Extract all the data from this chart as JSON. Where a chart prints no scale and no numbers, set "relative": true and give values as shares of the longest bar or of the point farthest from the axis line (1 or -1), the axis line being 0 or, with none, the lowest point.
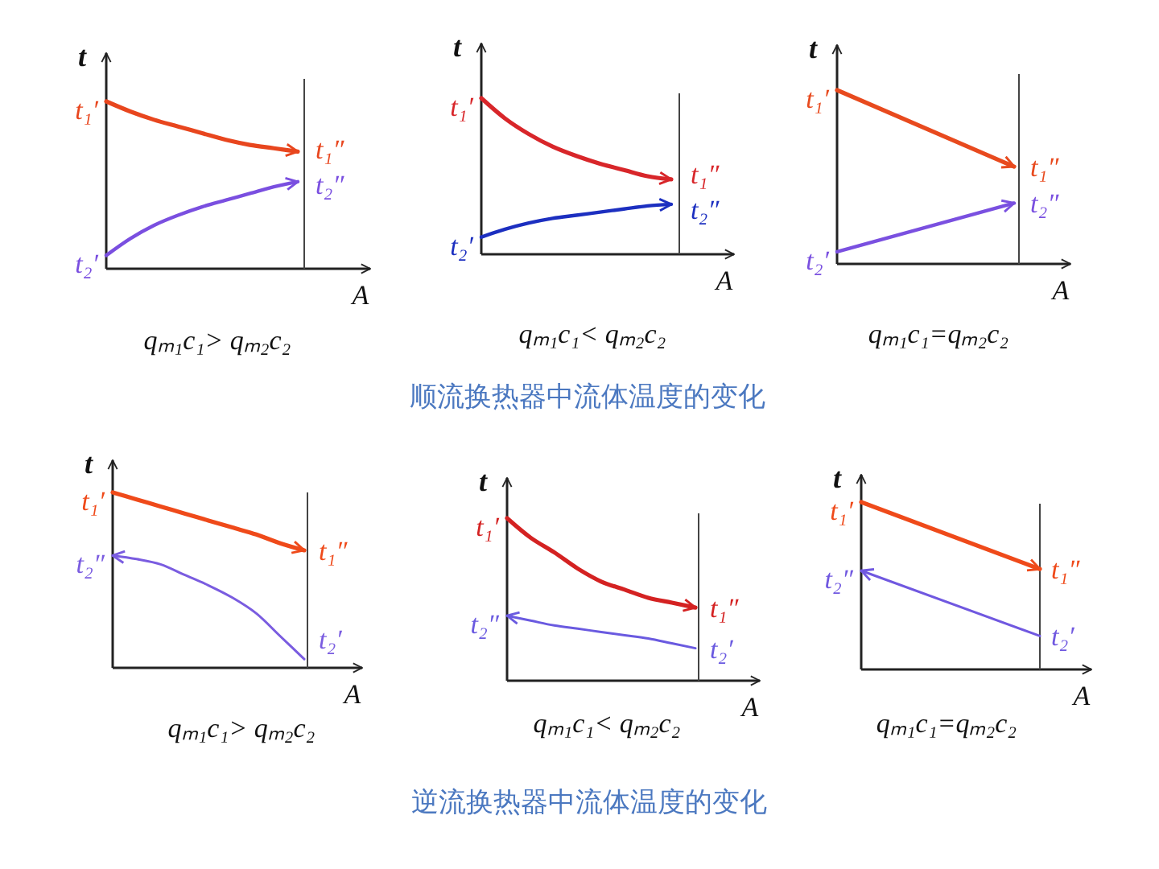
{
  "chart_data": [
    {
      "type": "line",
      "relative": true,
      "xlabel": "A",
      "ylabel": "t",
      "categories": [
        null,
        null,
        null,
        null,
        null,
        null,
        null,
        null,
        null
      ],
      "series": [
        {
          "color": "#e8461e",
          "values": [
            1,
            0.94,
            0.89,
            0.85,
            0.81,
            0.77,
            0.74,
            0.72,
            0.7
          ]
        },
        {
          "color": "#7a4fe0",
          "values": [
            0.08,
            0.18,
            0.26,
            0.32,
            0.37,
            0.41,
            0.45,
            0.49,
            0.52
          ]
        }
      ],
      "annotations": [
        "qₘ₁c₁> qₘ₂c₂",
        "t₁′",
        "t₁″",
        "t₂′",
        "t₂″"
      ]
    },
    {
      "type": "line",
      "relative": true,
      "xlabel": "A",
      "ylabel": "t",
      "categories": [
        null,
        null,
        null,
        null,
        null,
        null,
        null,
        null,
        null
      ],
      "series": [
        {
          "color": "#d8262a",
          "values": [
            1,
            0.87,
            0.77,
            0.69,
            0.63,
            0.58,
            0.54,
            0.5,
            0.48
          ]
        },
        {
          "color": "#1c2fc0",
          "values": [
            0.11,
            0.16,
            0.2,
            0.23,
            0.25,
            0.27,
            0.29,
            0.31,
            0.32
          ]
        }
      ],
      "annotations": [
        "qₘ₁c₁< qₘ₂c₂",
        "t₁′",
        "t₁″",
        "t₂′",
        "t₂″",
        "顺流换热器中流体温度的变化"
      ]
    },
    {
      "type": "line",
      "relative": true,
      "xlabel": "A",
      "ylabel": "t",
      "categories": [
        null,
        null
      ],
      "series": [
        {
          "color": "#e84a1e",
          "values": [
            1,
            0.56
          ]
        },
        {
          "color": "#7a50e0",
          "values": [
            0.07,
            0.35
          ]
        }
      ],
      "annotations": [
        "qₘ₁c₁=qₘ₂c₂",
        "t₁′",
        "t₁″",
        "t₂′",
        "t₂″"
      ]
    },
    {
      "type": "line",
      "relative": true,
      "xlabel": "A",
      "ylabel": "t",
      "categories": [
        null,
        null,
        null,
        null,
        null,
        null,
        null,
        null,
        null
      ],
      "series": [
        {
          "color": "#ef4a1a",
          "values": [
            1,
            0.96,
            0.92,
            0.88,
            0.84,
            0.8,
            0.76,
            0.71,
            0.67
          ]
        },
        {
          "color": "#7a5ce0",
          "values": [
            0.64,
            0.62,
            0.59,
            0.53,
            0.47,
            0.4,
            0.31,
            0.18,
            0.05
          ]
        }
      ],
      "annotations": [
        "qₘ₁c₁> qₘ₂c₂",
        "t₁′",
        "t₁″",
        "t₂″",
        "t₂′"
      ]
    },
    {
      "type": "line",
      "relative": true,
      "xlabel": "A",
      "ylabel": "t",
      "categories": [
        null,
        null,
        null,
        null,
        null,
        null,
        null,
        null,
        null
      ],
      "series": [
        {
          "color": "#d42222",
          "values": [
            1,
            0.88,
            0.79,
            0.69,
            0.61,
            0.56,
            0.51,
            0.48,
            0.45
          ]
        },
        {
          "color": "#6a5ae0",
          "values": [
            0.4,
            0.37,
            0.34,
            0.32,
            0.3,
            0.28,
            0.26,
            0.23,
            0.2
          ]
        }
      ],
      "annotations": [
        "qₘ₁c₁< qₘ₂c₂",
        "t₁′",
        "t₁″",
        "t₂″",
        "t₂′",
        "逆流换热器中流体温度的变化"
      ]
    },
    {
      "type": "line",
      "relative": true,
      "xlabel": "A",
      "ylabel": "t",
      "categories": [
        null,
        null
      ],
      "series": [
        {
          "color": "#ef4a1a",
          "values": [
            1,
            0.6
          ]
        },
        {
          "color": "#7058e0",
          "values": [
            0.59,
            0.2
          ]
        }
      ],
      "annotations": [
        "qₘ₁c₁=qₘ₂c₂",
        "t₁′",
        "t₁″",
        "t₂″",
        "t₂′"
      ]
    }
  ]
}
